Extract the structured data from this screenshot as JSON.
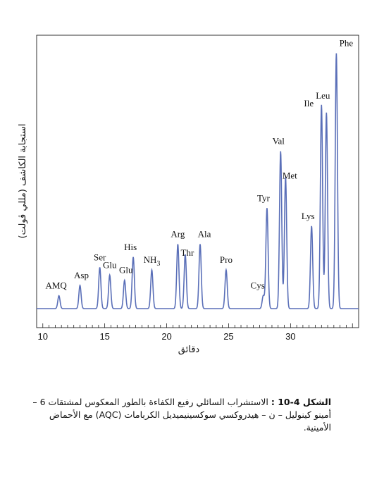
{
  "chart_data": {
    "type": "line",
    "title": "",
    "xlabel": "دقائق",
    "ylabel": "استجابة الكاشف (مللي ڤولت)",
    "xlim": [
      9.5,
      35.5
    ],
    "ylim": [
      0,
      100
    ],
    "xticks": [
      10,
      15,
      20,
      25,
      30
    ],
    "grid": false,
    "legend": "none",
    "line_color": "#5a6fb8",
    "baseline": 2.5,
    "peaks": [
      {
        "label": "AMQ",
        "time": 11.3,
        "height": 5
      },
      {
        "label": "Asp",
        "time": 13.0,
        "height": 9
      },
      {
        "label": "Ser",
        "time": 14.6,
        "height": 16
      },
      {
        "label": "Glu",
        "time": 15.4,
        "height": 13
      },
      {
        "label": "Glu",
        "time": 16.6,
        "height": 11
      },
      {
        "label": "His",
        "time": 17.3,
        "height": 20
      },
      {
        "label": "NH3",
        "time": 18.8,
        "height": 15
      },
      {
        "label": "Arg",
        "time": 20.9,
        "height": 25
      },
      {
        "label": "Thr",
        "time": 21.5,
        "height": 21
      },
      {
        "label": "Ala",
        "time": 22.7,
        "height": 25
      },
      {
        "label": "Pro",
        "time": 24.8,
        "height": 15
      },
      {
        "label": "Cys",
        "time": 27.8,
        "height": 5
      },
      {
        "label": "Tyr",
        "time": 28.1,
        "height": 39
      },
      {
        "label": "Val",
        "time": 29.2,
        "height": 61
      },
      {
        "label": "Met",
        "time": 29.6,
        "height": 51
      },
      {
        "label": "Lys",
        "time": 31.7,
        "height": 32
      },
      {
        "label": "Ile",
        "time": 32.5,
        "height": 79
      },
      {
        "label": "Leu",
        "time": 32.9,
        "height": 76
      },
      {
        "label": "Phe",
        "time": 33.7,
        "height": 99
      }
    ]
  },
  "caption": {
    "prefix": "الشكل 4-10 :",
    "text": "الاستشراب السائلي رفيع الكفاءة بالطور المعكوس لمشتقات 6 – أمينو كينوليل – ن – هيدروكسي سوكسينيميديل الكربامات (AQC) مع الأحماض الأمينية."
  }
}
